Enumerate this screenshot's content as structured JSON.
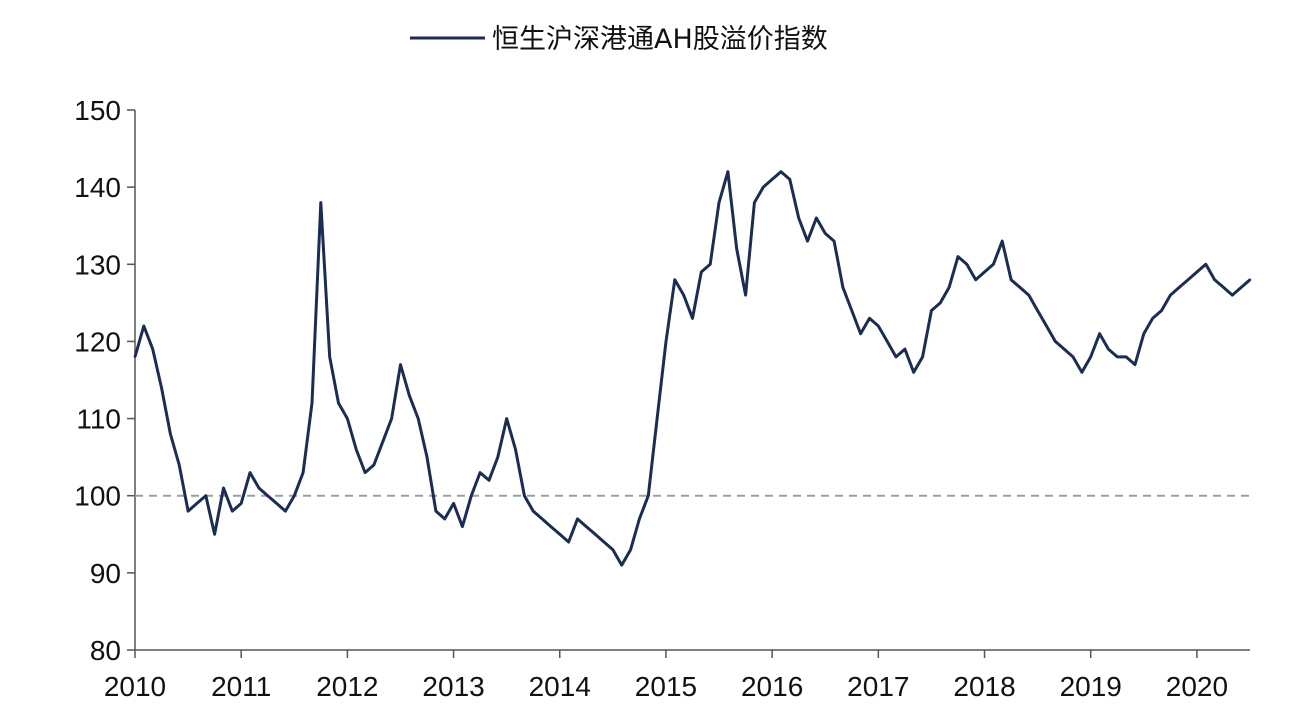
{
  "chart_data": {
    "type": "line",
    "title": "",
    "xlabel": "",
    "ylabel": "",
    "legend": {
      "position": "top-center"
    },
    "grid": false,
    "x_range": [
      "2010-01",
      "2020-07"
    ],
    "ylim": [
      80,
      150
    ],
    "y_ticks": [
      80,
      90,
      100,
      110,
      120,
      130,
      140,
      150
    ],
    "x_ticks": [
      "2010",
      "2011",
      "2012",
      "2013",
      "2014",
      "2015",
      "2016",
      "2017",
      "2018",
      "2019",
      "2020"
    ],
    "reference_line": {
      "y": 100,
      "style": "dashed",
      "color": "#9aa0aa"
    },
    "series": [
      {
        "name": "恒生沪深港通AH股溢价指数",
        "color": "#1b2d52",
        "x": [
          "2010-01",
          "2010-02",
          "2010-03",
          "2010-04",
          "2010-05",
          "2010-06",
          "2010-07",
          "2010-08",
          "2010-09",
          "2010-10",
          "2010-11",
          "2010-12",
          "2011-01",
          "2011-02",
          "2011-03",
          "2011-04",
          "2011-05",
          "2011-06",
          "2011-07",
          "2011-08",
          "2011-09",
          "2011-10",
          "2011-11",
          "2011-12",
          "2012-01",
          "2012-02",
          "2012-03",
          "2012-04",
          "2012-05",
          "2012-06",
          "2012-07",
          "2012-08",
          "2012-09",
          "2012-10",
          "2012-11",
          "2012-12",
          "2013-01",
          "2013-02",
          "2013-03",
          "2013-04",
          "2013-05",
          "2013-06",
          "2013-07",
          "2013-08",
          "2013-09",
          "2013-10",
          "2013-11",
          "2013-12",
          "2014-01",
          "2014-02",
          "2014-03",
          "2014-04",
          "2014-05",
          "2014-06",
          "2014-07",
          "2014-08",
          "2014-09",
          "2014-10",
          "2014-11",
          "2014-12",
          "2015-01",
          "2015-02",
          "2015-03",
          "2015-04",
          "2015-05",
          "2015-06",
          "2015-07",
          "2015-08",
          "2015-09",
          "2015-10",
          "2015-11",
          "2015-12",
          "2016-01",
          "2016-02",
          "2016-03",
          "2016-04",
          "2016-05",
          "2016-06",
          "2016-07",
          "2016-08",
          "2016-09",
          "2016-10",
          "2016-11",
          "2016-12",
          "2017-01",
          "2017-02",
          "2017-03",
          "2017-04",
          "2017-05",
          "2017-06",
          "2017-07",
          "2017-08",
          "2017-09",
          "2017-10",
          "2017-11",
          "2017-12",
          "2018-01",
          "2018-02",
          "2018-03",
          "2018-04",
          "2018-05",
          "2018-06",
          "2018-07",
          "2018-08",
          "2018-09",
          "2018-10",
          "2018-11",
          "2018-12",
          "2019-01",
          "2019-02",
          "2019-03",
          "2019-04",
          "2019-05",
          "2019-06",
          "2019-07",
          "2019-08",
          "2019-09",
          "2019-10",
          "2019-11",
          "2019-12",
          "2020-01",
          "2020-02",
          "2020-03",
          "2020-04",
          "2020-05",
          "2020-06",
          "2020-07"
        ],
        "values": [
          118,
          122,
          119,
          114,
          108,
          104,
          98,
          99,
          100,
          95,
          101,
          98,
          99,
          103,
          101,
          100,
          99,
          98,
          100,
          103,
          112,
          138,
          118,
          112,
          110,
          106,
          103,
          104,
          107,
          110,
          117,
          113,
          110,
          105,
          98,
          97,
          99,
          96,
          100,
          103,
          102,
          105,
          110,
          106,
          100,
          98,
          97,
          96,
          95,
          94,
          97,
          96,
          95,
          94,
          93,
          91,
          93,
          97,
          100,
          110,
          120,
          128,
          126,
          123,
          129,
          130,
          138,
          142,
          132,
          126,
          138,
          140,
          141,
          142,
          141,
          136,
          133,
          136,
          134,
          133,
          127,
          124,
          121,
          123,
          122,
          120,
          118,
          119,
          116,
          118,
          124,
          125,
          127,
          131,
          130,
          128,
          129,
          130,
          133,
          128,
          127,
          126,
          124,
          122,
          120,
          119,
          118,
          116,
          118,
          121,
          119,
          118,
          118,
          117,
          121,
          123,
          124,
          126,
          127,
          128,
          129,
          130,
          128,
          127,
          126,
          127,
          128
        ]
      }
    ]
  }
}
